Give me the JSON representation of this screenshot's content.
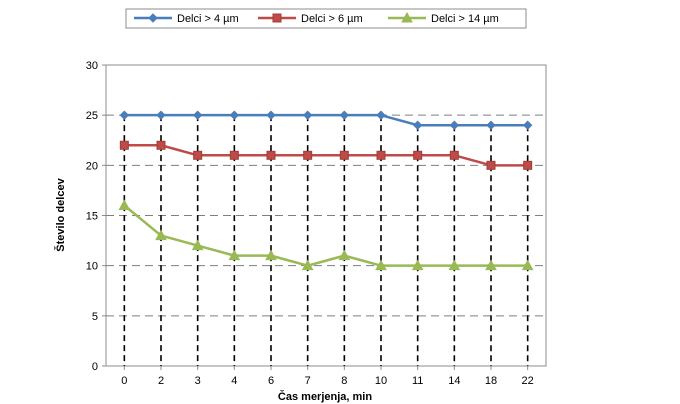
{
  "chart_data": {
    "type": "line",
    "title": "",
    "xlabel": "Čas merjenja, min",
    "ylabel": "Število delcev",
    "categories": [
      "0",
      "2",
      "3",
      "4",
      "6",
      "7",
      "8",
      "10",
      "11",
      "14",
      "18",
      "22"
    ],
    "ylim": [
      0,
      30
    ],
    "yticks": [
      0,
      5,
      10,
      15,
      20,
      25,
      30
    ],
    "grid": "horizontal dashed, vertical dashed drop lines",
    "legend_position": "top",
    "series": [
      {
        "name": "Delci > 4 µm",
        "color": "#4a7ebb",
        "marker": "diamond",
        "values": [
          25,
          25,
          25,
          25,
          25,
          25,
          25,
          25,
          24,
          24,
          24,
          24
        ]
      },
      {
        "name": "Delci > 6 µm",
        "color": "#be4b48",
        "marker": "square",
        "values": [
          22,
          22,
          21,
          21,
          21,
          21,
          21,
          21,
          21,
          21,
          20,
          20
        ]
      },
      {
        "name": "Delci > 14 µm",
        "color": "#98b954",
        "marker": "triangle",
        "values": [
          16,
          13,
          12,
          11,
          11,
          10,
          11,
          10,
          10,
          10,
          10,
          10
        ]
      }
    ]
  }
}
